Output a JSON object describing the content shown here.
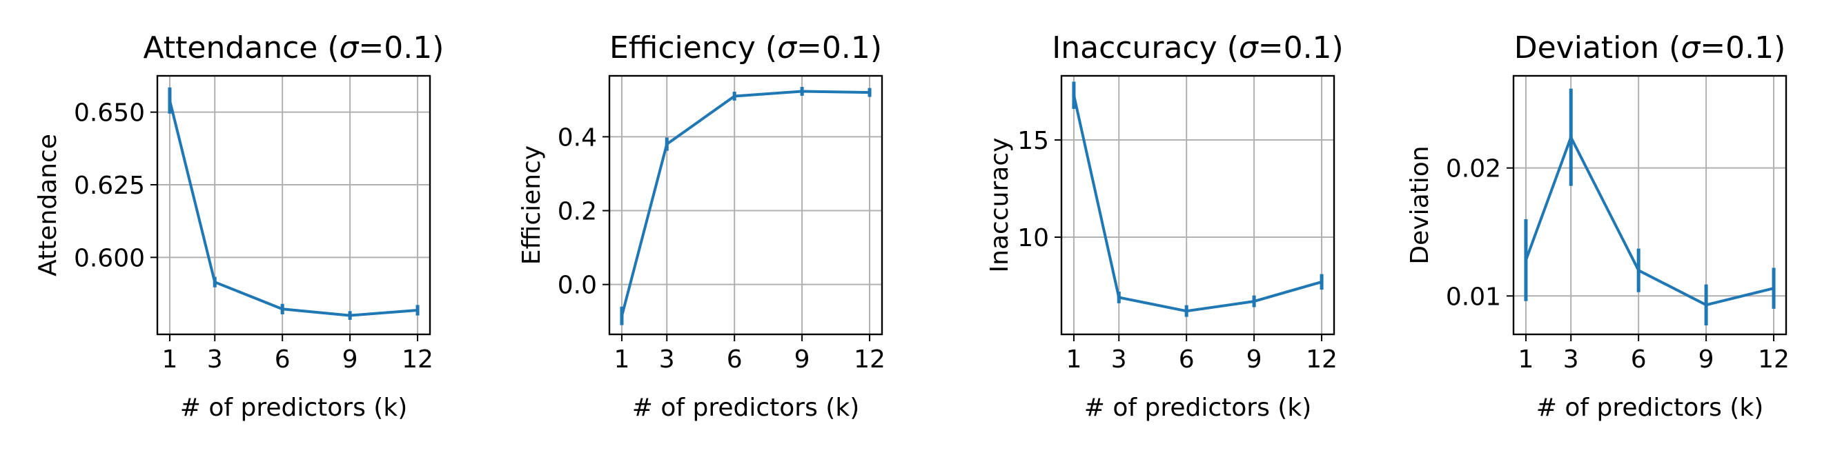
{
  "colors": {
    "line": "#1f77b4",
    "grid": "#b0b0b0",
    "axis": "#000000"
  },
  "chart_data": [
    {
      "type": "line",
      "title_prefix": "Attendance (",
      "title_symbol": "σ",
      "title_suffix": "=0.1)",
      "xlabel": "# of predictors (k)",
      "ylabel": "Attendance",
      "grid": true,
      "x": [
        1,
        3,
        6,
        9,
        12
      ],
      "y": [
        0.654,
        0.5915,
        0.5822,
        0.58,
        0.5818
      ],
      "yerr": [
        0.0045,
        0.0018,
        0.0018,
        0.0015,
        0.0018
      ],
      "xticks": [
        1,
        3,
        6,
        9,
        12
      ],
      "xtick_labels": [
        "1",
        "3",
        "6",
        "9",
        "12"
      ],
      "yticks": [
        0.6,
        0.625,
        0.65
      ],
      "ytick_labels": [
        "0.600",
        "0.625",
        "0.650"
      ],
      "xlim": [
        0.45,
        12.55
      ],
      "ylim": [
        0.5735,
        0.6625
      ]
    },
    {
      "type": "line",
      "title_prefix": "Efficiency (",
      "title_symbol": "σ",
      "title_suffix": "=0.1)",
      "xlabel": "# of predictors (k)",
      "ylabel": "Efficiency",
      "grid": true,
      "x": [
        1,
        3,
        6,
        9,
        12
      ],
      "y": [
        -0.085,
        0.38,
        0.51,
        0.523,
        0.52
      ],
      "yerr": [
        0.025,
        0.018,
        0.012,
        0.012,
        0.012
      ],
      "xticks": [
        1,
        3,
        6,
        9,
        12
      ],
      "xtick_labels": [
        "1",
        "3",
        "6",
        "9",
        "12"
      ],
      "yticks": [
        0.0,
        0.2,
        0.4
      ],
      "ytick_labels": [
        "0.0",
        "0.2",
        "0.4"
      ],
      "xlim": [
        0.45,
        12.55
      ],
      "ylim": [
        -0.135,
        0.565
      ]
    },
    {
      "type": "line",
      "title_prefix": "Inaccuracy (",
      "title_symbol": "σ",
      "title_suffix": "=0.1)",
      "xlabel": "# of predictors (k)",
      "ylabel": "Inaccuracy",
      "grid": true,
      "x": [
        1,
        3,
        6,
        9,
        12
      ],
      "y": [
        17.3,
        6.9,
        6.2,
        6.7,
        7.7
      ],
      "yerr": [
        0.7,
        0.3,
        0.3,
        0.3,
        0.4
      ],
      "xticks": [
        1,
        3,
        6,
        9,
        12
      ],
      "xtick_labels": [
        "1",
        "3",
        "6",
        "9",
        "12"
      ],
      "yticks": [
        10,
        15
      ],
      "ytick_labels": [
        "10",
        "15"
      ],
      "xlim": [
        0.45,
        12.55
      ],
      "ylim": [
        5.0,
        18.3
      ]
    },
    {
      "type": "line",
      "title_prefix": "Deviation (",
      "title_symbol": "σ",
      "title_suffix": "=0.1)",
      "xlabel": "# of predictors (k)",
      "ylabel": "Deviation",
      "grid": true,
      "x": [
        1,
        3,
        6,
        9,
        12
      ],
      "y": [
        0.0128,
        0.0224,
        0.012,
        0.0093,
        0.0106
      ],
      "yerr": [
        0.0032,
        0.0038,
        0.0017,
        0.0016,
        0.0016
      ],
      "xticks": [
        1,
        3,
        6,
        9,
        12
      ],
      "xtick_labels": [
        "1",
        "3",
        "6",
        "9",
        "12"
      ],
      "yticks": [
        0.01,
        0.02
      ],
      "ytick_labels": [
        "0.01",
        "0.02"
      ],
      "xlim": [
        0.45,
        12.55
      ],
      "ylim": [
        0.007,
        0.0272
      ]
    }
  ]
}
